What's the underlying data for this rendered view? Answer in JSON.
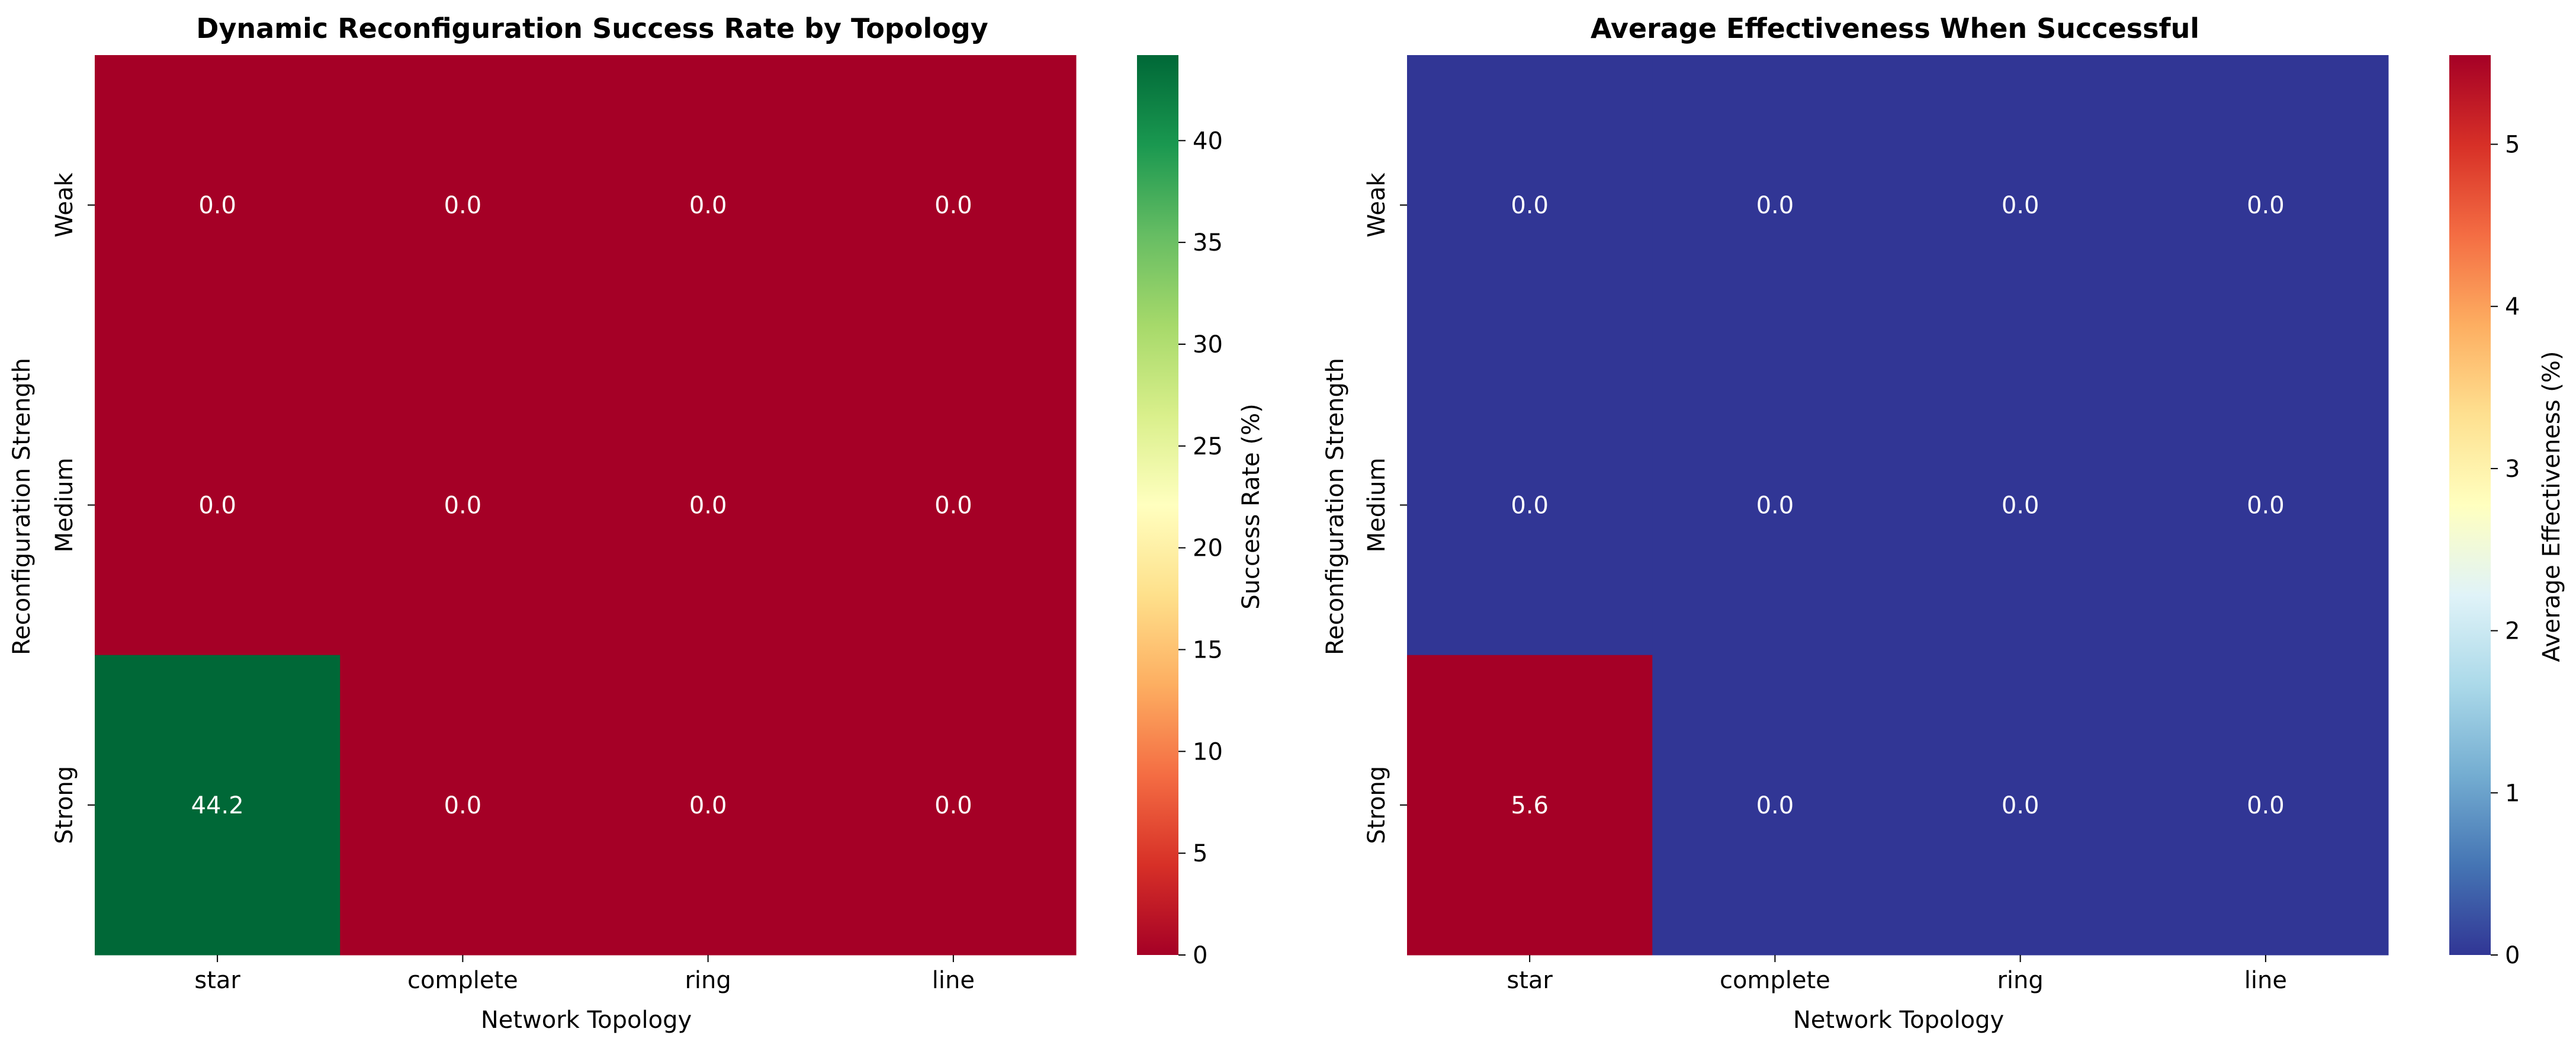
{
  "chart_data": [
    {
      "type": "heatmap",
      "title": "Dynamic Reconfiguration Success Rate by Topology",
      "xlabel": "Network Topology",
      "ylabel": "Reconfiguration Strength",
      "x_categories": [
        "star",
        "complete",
        "ring",
        "line"
      ],
      "y_categories": [
        "Weak",
        "Medium",
        "Strong"
      ],
      "values": [
        [
          0.0,
          0.0,
          0.0,
          0.0
        ],
        [
          0.0,
          0.0,
          0.0,
          0.0
        ],
        [
          44.2,
          0.0,
          0.0,
          0.0
        ]
      ],
      "colorbar": {
        "label": "Success Rate (%)",
        "range": [
          0,
          44.2
        ],
        "ticks": [
          0,
          5,
          10,
          15,
          20,
          25,
          30,
          35,
          40
        ],
        "colormap": "RdYlGn"
      }
    },
    {
      "type": "heatmap",
      "title": "Average Effectiveness When Successful",
      "xlabel": "Network Topology",
      "ylabel": "Reconfiguration Strength",
      "x_categories": [
        "star",
        "complete",
        "ring",
        "line"
      ],
      "y_categories": [
        "Weak",
        "Medium",
        "Strong"
      ],
      "values": [
        [
          0.0,
          0.0,
          0.0,
          0.0
        ],
        [
          0.0,
          0.0,
          0.0,
          0.0
        ],
        [
          5.6,
          0.0,
          0.0,
          0.0
        ]
      ],
      "colorbar": {
        "label": "Average Effectiveness (%)",
        "range": [
          0,
          5.55
        ],
        "ticks": [
          0,
          1,
          2,
          3,
          4,
          5
        ],
        "colormap": "RdYlBu_r"
      }
    }
  ]
}
